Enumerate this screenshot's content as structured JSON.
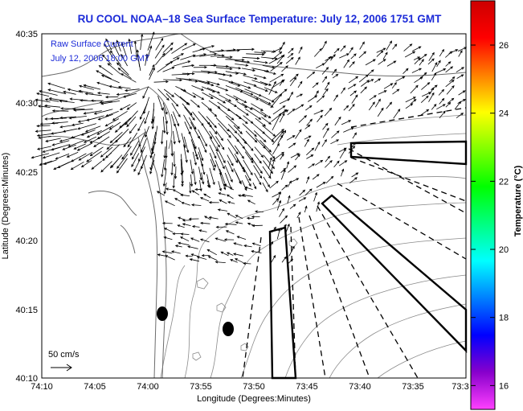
{
  "title": "RU COOL  NOAA–18  Sea Surface Temperature:  July 12, 2006 1751 GMT",
  "legend": {
    "line1": "Raw Surface Current",
    "line2": "July 12, 2006 18:00 GMT"
  },
  "scale_label": "50 cm/s",
  "xlabel": "Longitude (Degrees:Minutes)",
  "ylabel": "Latitude (Degrees:Minutes)",
  "x_ticks": [
    "74:10",
    "74:05",
    "74:00",
    "73:55",
    "73:50",
    "73:45",
    "73:40",
    "73:35",
    "73:3"
  ],
  "y_ticks": [
    "40:35",
    "40:30",
    "40:25",
    "40:20",
    "40:15",
    "40:10"
  ],
  "colorbar": {
    "label": "Temperature (°C)",
    "ticks": [
      "26",
      "24",
      "22",
      "20",
      "18",
      "16"
    ],
    "range": [
      15.3,
      27.3
    ],
    "colors": [
      "#ff40ff",
      "#8800cc",
      "#0000ff",
      "#0080ff",
      "#00ffff",
      "#00ff80",
      "#00ff00",
      "#80ff00",
      "#ffff00",
      "#ff8000",
      "#ff0000",
      "#cc0000"
    ]
  },
  "map": {
    "lon_range": [
      "74:10",
      "73:30"
    ],
    "lat_range": [
      "40:10",
      "40:35"
    ],
    "land_color": "#ffffff",
    "arrow_color": "#000000",
    "markers": [
      {
        "name": "buoy-west",
        "lon": "74:00.6",
        "lat": "40:14.6"
      },
      {
        "name": "buoy-east",
        "lon": "73:57.1",
        "lat": "40:13.5"
      }
    ]
  }
}
